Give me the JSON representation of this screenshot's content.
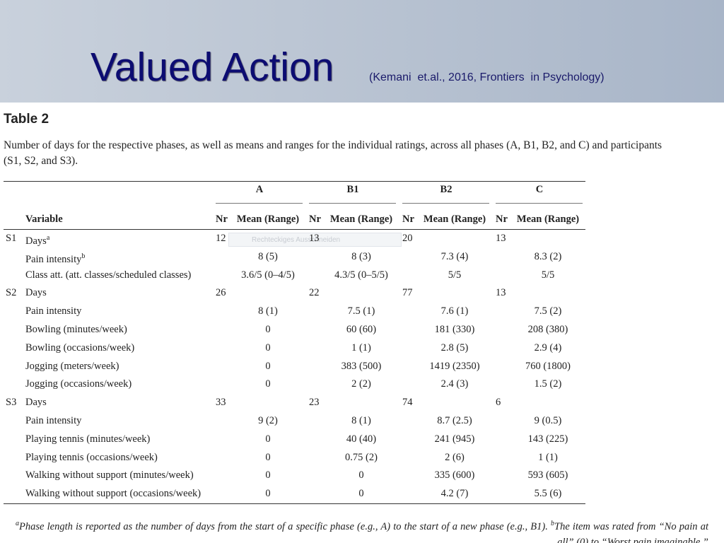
{
  "header": {
    "title": "Valued Action",
    "citation": "(Kemani  et.al., 2016, Frontiers  in Psychology)"
  },
  "table": {
    "caption": "Table 2",
    "description": "Number of days for the respective phases, as well as means and ranges for the individual ratings, across all phases (A, B1, B2, and C) and participants (S1, S2, and S3).",
    "phases": [
      "A",
      "B1",
      "B2",
      "C"
    ],
    "variable_header": "Variable",
    "nr_header": "Nr",
    "mean_header": "Mean (Range)",
    "rows": [
      {
        "participant": "S1",
        "variable": "Days",
        "sup": "a",
        "nr": [
          12,
          13,
          20,
          13
        ]
      },
      {
        "variable": "Pain intensity",
        "sup": "b",
        "mean": [
          "8 (5)",
          "8 (3)",
          "7.3 (4)",
          "8.3 (2)"
        ]
      },
      {
        "variable": "Class att. (att. classes/scheduled classes)",
        "mean": [
          "3.6/5 (0–4/5)",
          "4.3/5 (0–5/5)",
          "5/5",
          "5/5"
        ]
      },
      {
        "participant": "S2",
        "variable": "Days",
        "nr": [
          26,
          22,
          77,
          13
        ]
      },
      {
        "variable": "Pain intensity",
        "mean": [
          "8 (1)",
          "7.5 (1)",
          "7.6 (1)",
          "7.5 (2)"
        ]
      },
      {
        "variable": "Bowling (minutes/week)",
        "mean": [
          "0",
          "60 (60)",
          "181 (330)",
          "208 (380)"
        ]
      },
      {
        "variable": "Bowling (occasions/week)",
        "mean": [
          "0",
          "1 (1)",
          "2.8 (5)",
          "2.9 (4)"
        ]
      },
      {
        "variable": "Jogging (meters/week)",
        "mean": [
          "0",
          "383 (500)",
          "1419 (2350)",
          "760 (1800)"
        ]
      },
      {
        "variable": "Jogging (occasions/week)",
        "mean": [
          "0",
          "2 (2)",
          "2.4 (3)",
          "1.5 (2)"
        ]
      },
      {
        "participant": "S3",
        "variable": "Days",
        "nr": [
          33,
          23,
          74,
          6
        ]
      },
      {
        "variable": "Pain intensity",
        "mean": [
          "9 (2)",
          "8 (1)",
          "8.7 (2.5)",
          "9 (0.5)"
        ]
      },
      {
        "variable": "Playing tennis (minutes/week)",
        "mean": [
          "0",
          "40 (40)",
          "241 (945)",
          "143 (225)"
        ]
      },
      {
        "variable": "Playing tennis (occasions/week)",
        "mean": [
          "0",
          "0.75 (2)",
          "2 (6)",
          "1 (1)"
        ]
      },
      {
        "variable": "Walking without support (minutes/week)",
        "mean": [
          "0",
          "0",
          "335 (600)",
          "593 (605)"
        ]
      },
      {
        "variable": "Walking without support (occasions/week)",
        "mean": [
          "0",
          "0",
          "4.2 (7)",
          "5.5 (6)"
        ]
      }
    ],
    "footnote": {
      "sup_a": "a",
      "text_a": "Phase length is reported as the number of days from the start of a specific phase (e.g., A) to the start of a new phase (e.g., B1). ",
      "sup_b": "b",
      "text_b": "The item was rated from “No pain at all” (0) to “Worst pain imaginable.”"
    }
  },
  "overlay": {
    "label": "Rechteckiges Ausschneiden"
  }
}
